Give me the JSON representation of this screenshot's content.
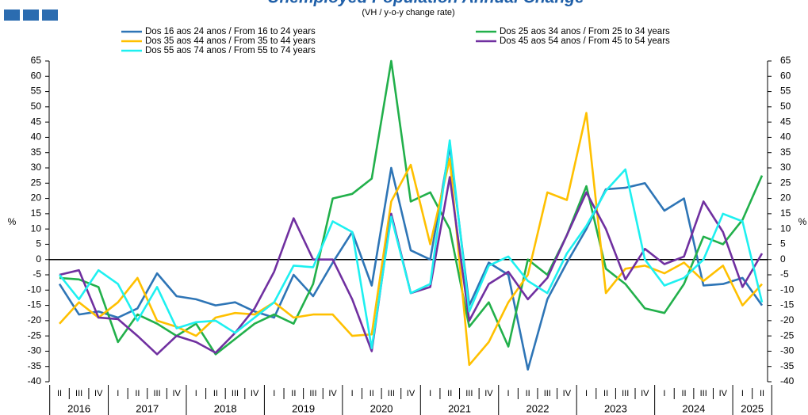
{
  "chart_data": {
    "type": "line",
    "title": "Unemployed Population Annual Change",
    "subtitle": "(VH / y-o-y change rate)",
    "y_label": "%",
    "categories": [
      "II",
      "III",
      "IV",
      "I",
      "II",
      "III",
      "IV",
      "I",
      "II",
      "III",
      "IV",
      "I",
      "II",
      "III",
      "IV",
      "I",
      "II",
      "III",
      "IV",
      "I",
      "II",
      "III",
      "IV",
      "I",
      "II",
      "III",
      "IV",
      "I",
      "II",
      "III",
      "IV",
      "I",
      "II",
      "III",
      "IV",
      "I",
      "II"
    ],
    "years": [
      "2016",
      "2017",
      "2018",
      "2019",
      "2020",
      "2021",
      "2022",
      "2023",
      "2024",
      "2025"
    ],
    "ylim": [
      -40,
      65
    ],
    "yticks": [
      -40,
      -35,
      -30,
      -25,
      -20,
      -15,
      -10,
      -5,
      0,
      5,
      10,
      15,
      20,
      25,
      30,
      35,
      40,
      45,
      50,
      55,
      60,
      65
    ],
    "series": [
      {
        "name": "Dos 16 aos 24 anos / From 16 to 24 years",
        "color": "#2e75b6",
        "values": [
          -8,
          -18,
          -17,
          -19,
          -16,
          -4.5,
          -12,
          -13,
          -15,
          -14,
          -17,
          -19,
          -5,
          -12,
          -1,
          9,
          -8.5,
          30,
          3,
          0,
          37,
          -15,
          -1,
          -5,
          -36,
          -13,
          -1,
          10,
          23,
          23.5,
          25,
          16,
          20,
          -8.5,
          -8,
          -6,
          -15
        ]
      },
      {
        "name": "Dos 25 aos 34 anos / From 25 to 34 years",
        "color": "#22b04b",
        "values": [
          -6,
          -6.5,
          -9,
          -27,
          -18,
          -21,
          -25,
          -21,
          -31,
          -26,
          -21,
          -18,
          -21,
          -8,
          20,
          21.5,
          26.5,
          65,
          19,
          22,
          10,
          -22,
          -14,
          -28.5,
          0,
          -5,
          8,
          24,
          -3,
          -8,
          -16,
          -17.5,
          -8,
          7.5,
          5,
          13,
          27.5
        ]
      },
      {
        "name": "Dos 35 aos 44 anos / From 35 to 44 years",
        "color": "#ffc000",
        "values": [
          -21,
          -14,
          -19,
          -14,
          -6,
          -20,
          -22,
          -25,
          -19,
          -17.5,
          -18,
          -14,
          -19,
          -18,
          -18,
          -25,
          -24.5,
          19,
          31,
          5,
          33,
          -34.5,
          -27,
          -14,
          -5,
          22,
          19.5,
          48,
          -11,
          -3,
          -2,
          -4.5,
          -1,
          -7,
          -2,
          -15,
          -8
        ]
      },
      {
        "name": "Dos 45 aos 54 anos / From 45 to 54 years",
        "color": "#7030a0",
        "values": [
          -5,
          -3.5,
          -19,
          -19.5,
          -25,
          -31,
          -25,
          -27,
          -30.5,
          -24,
          -16,
          -4,
          13.5,
          0,
          0,
          -13,
          -30,
          15,
          -11,
          -9,
          27,
          -20,
          -8,
          -4,
          -13,
          -6,
          8,
          22,
          10,
          -6.5,
          3.5,
          -1.5,
          1,
          19,
          9,
          -9,
          2
        ]
      },
      {
        "name": "Dos 55 aos 74 anos / From 55 to 74 years",
        "color": "#1ef0f0",
        "values": [
          -5,
          -13,
          -3.5,
          -8,
          -20,
          -9,
          -22.5,
          -20.5,
          -20,
          -24,
          -19,
          -14,
          -2,
          -2.5,
          12.5,
          9,
          -29,
          14,
          -11,
          -8,
          39,
          -17,
          -2,
          1,
          -7,
          -11,
          2,
          11,
          22.5,
          29.5,
          0,
          -8.5,
          -6,
          0,
          15,
          12.5,
          -14
        ]
      }
    ]
  }
}
